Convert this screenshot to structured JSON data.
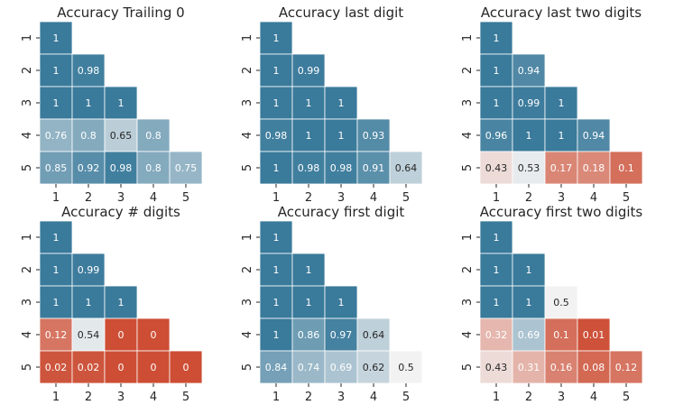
{
  "chart_data": [
    {
      "type": "heatmap",
      "title": "Accuracy Trailing 0",
      "xticks": [
        "1",
        "2",
        "3",
        "4",
        "5"
      ],
      "yticks": [
        "1",
        "2",
        "3",
        "4",
        "5"
      ],
      "vlim": [
        0,
        1
      ],
      "rows": [
        [
          "1"
        ],
        [
          "1",
          "0.98"
        ],
        [
          "1",
          "1",
          "1"
        ],
        [
          "0.76",
          "0.8",
          "0.65",
          "0.8"
        ],
        [
          "0.85",
          "0.92",
          "0.98",
          "0.8",
          "0.75"
        ]
      ]
    },
    {
      "type": "heatmap",
      "title": "Accuracy last digit",
      "xticks": [
        "1",
        "2",
        "3",
        "4",
        "5"
      ],
      "yticks": [
        "1",
        "2",
        "3",
        "4",
        "5"
      ],
      "vlim": [
        0,
        1
      ],
      "rows": [
        [
          "1"
        ],
        [
          "1",
          "0.99"
        ],
        [
          "1",
          "1",
          "1"
        ],
        [
          "0.98",
          "1",
          "1",
          "0.93"
        ],
        [
          "1",
          "0.98",
          "0.98",
          "0.91",
          "0.64"
        ]
      ]
    },
    {
      "type": "heatmap",
      "title": "Accuracy last two digits",
      "xticks": [
        "1",
        "2",
        "3",
        "4",
        "5"
      ],
      "yticks": [
        "1",
        "2",
        "3",
        "4",
        "5"
      ],
      "vlim": [
        0,
        1
      ],
      "rows": [
        [
          "1"
        ],
        [
          "1",
          "0.94"
        ],
        [
          "1",
          "0.99",
          "1"
        ],
        [
          "0.96",
          "1",
          "1",
          "0.94"
        ],
        [
          "0.43",
          "0.53",
          "0.17",
          "0.18",
          "0.1"
        ]
      ]
    },
    {
      "type": "heatmap",
      "title": "Accuracy # digits",
      "xticks": [
        "1",
        "2",
        "3",
        "4",
        "5"
      ],
      "yticks": [
        "1",
        "2",
        "3",
        "4",
        "5"
      ],
      "vlim": [
        0,
        1
      ],
      "rows": [
        [
          "1"
        ],
        [
          "1",
          "0.99"
        ],
        [
          "1",
          "1",
          "1"
        ],
        [
          "0.12",
          "0.54",
          "0",
          "0"
        ],
        [
          "0.02",
          "0.02",
          "0",
          "0",
          "0"
        ]
      ]
    },
    {
      "type": "heatmap",
      "title": "Accuracy first digit",
      "xticks": [
        "1",
        "2",
        "3",
        "4",
        "5"
      ],
      "yticks": [
        "1",
        "2",
        "3",
        "4",
        "5"
      ],
      "vlim": [
        0,
        1
      ],
      "rows": [
        [
          "1"
        ],
        [
          "1",
          "1"
        ],
        [
          "1",
          "1",
          "1"
        ],
        [
          "1",
          "0.86",
          "0.97",
          "0.64"
        ],
        [
          "0.84",
          "0.74",
          "0.69",
          "0.62",
          "0.5"
        ]
      ]
    },
    {
      "type": "heatmap",
      "title": "Accuracy first two digits",
      "xticks": [
        "1",
        "2",
        "3",
        "4",
        "5"
      ],
      "yticks": [
        "1",
        "2",
        "3",
        "4",
        "5"
      ],
      "vlim": [
        0,
        1
      ],
      "rows": [
        [
          "1"
        ],
        [
          "1",
          "1"
        ],
        [
          "1",
          "1",
          "0.5"
        ],
        [
          "0.32",
          "0.69",
          "0.1",
          "0.01"
        ],
        [
          "0.43",
          "0.31",
          "0.16",
          "0.08",
          "0.12"
        ]
      ]
    }
  ],
  "colors": {
    "low": "#cd4e35",
    "mid": "#f2f2f2",
    "high": "#3a7a9b"
  }
}
